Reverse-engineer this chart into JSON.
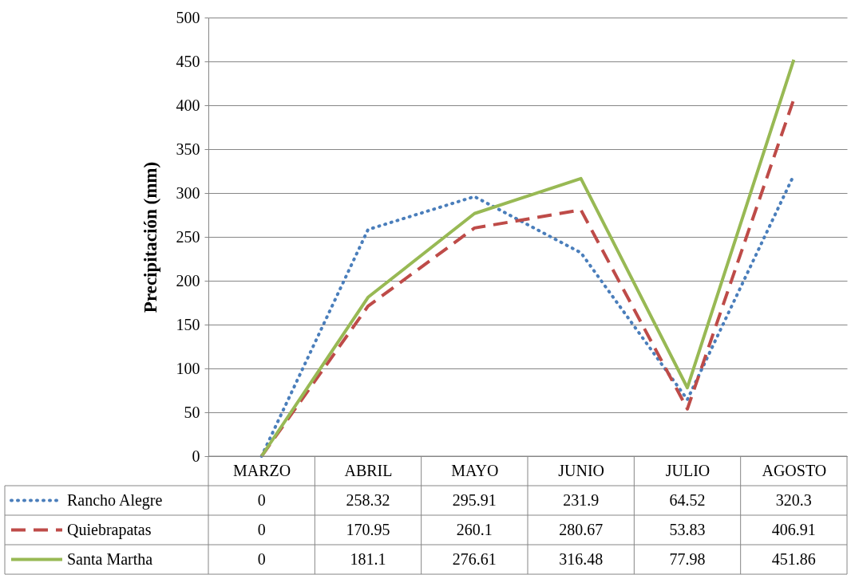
{
  "chart_data": {
    "type": "line",
    "ylabel": "Precipitación (mm)",
    "categories": [
      "MARZO",
      "ABRIL",
      "MAYO",
      "JUNIO",
      "JULIO",
      "AGOSTO"
    ],
    "series": [
      {
        "name": "Rancho Alegre",
        "color": "#4a7ebb",
        "line_style": "dotted",
        "values": [
          0,
          258.32,
          295.91,
          231.9,
          64.52,
          320.3
        ]
      },
      {
        "name": "Quiebrapatas",
        "color": "#be4b48",
        "line_style": "dashed",
        "values": [
          0,
          170.95,
          260.1,
          280.67,
          53.83,
          406.91
        ]
      },
      {
        "name": "Santa Martha",
        "color": "#98b954",
        "line_style": "solid",
        "values": [
          0,
          181.1,
          276.61,
          316.48,
          77.98,
          451.86
        ]
      }
    ],
    "ylim": [
      0,
      500
    ],
    "yticks": [
      0,
      50,
      100,
      150,
      200,
      250,
      300,
      350,
      400,
      450,
      500
    ],
    "grid": "y",
    "legend": "bottom",
    "data_labels": true,
    "marker": "none"
  }
}
